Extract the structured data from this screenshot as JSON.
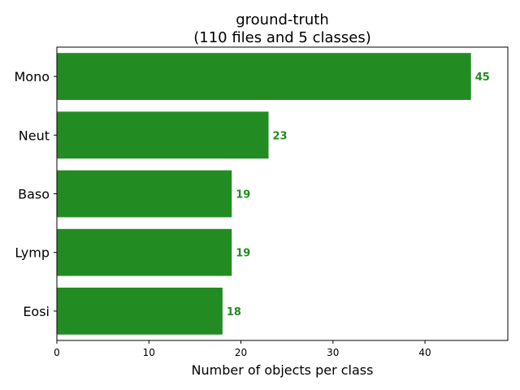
{
  "chart_data": {
    "type": "bar",
    "orientation": "horizontal",
    "title": "ground-truth",
    "subtitle": "(110 files and 5 classes)",
    "xlabel": "Number of objects per class",
    "ylabel": "",
    "categories": [
      "Mono",
      "Neut",
      "Baso",
      "Lymp",
      "Eosi"
    ],
    "values": [
      45,
      23,
      19,
      19,
      18
    ],
    "xlim": [
      0,
      49
    ],
    "xticks": [
      0,
      10,
      20,
      30,
      40
    ],
    "grid": false,
    "legend": "none",
    "bar_color": "#228b22",
    "label_color": "#228b22"
  }
}
